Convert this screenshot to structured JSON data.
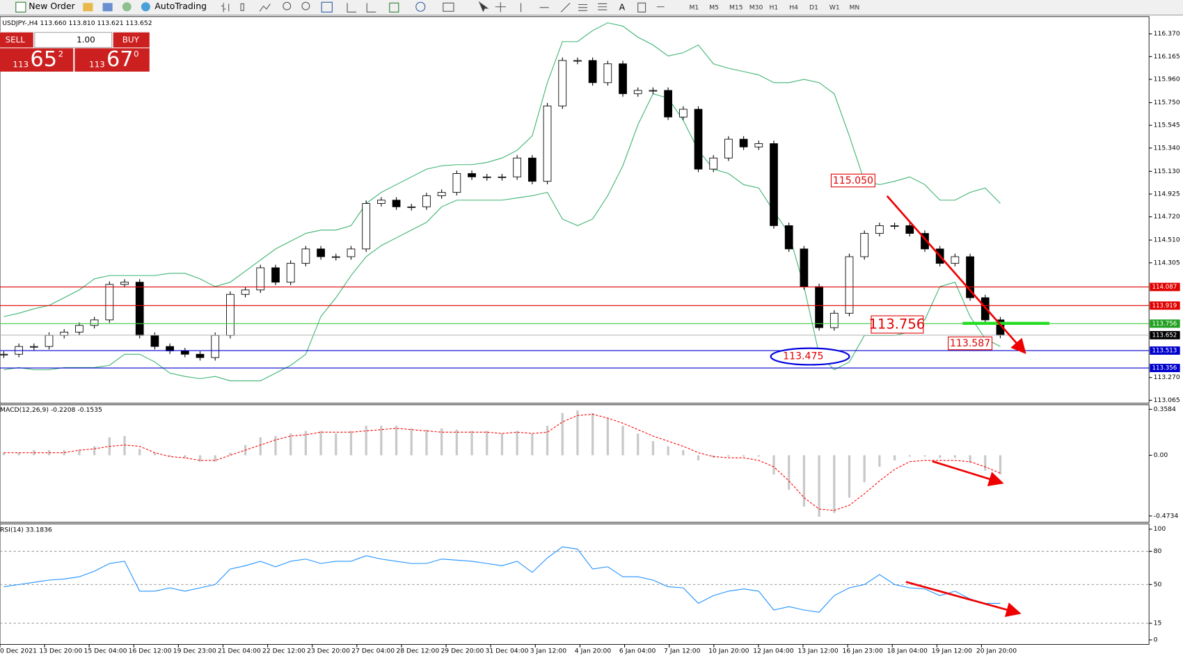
{
  "toolbar": {
    "new_order": "New Order",
    "auto_trading": "AutoTrading",
    "timeframes": [
      "M1",
      "M5",
      "M15",
      "M30",
      "H1",
      "H4",
      "D1",
      "W1",
      "MN"
    ]
  },
  "trade_panel": {
    "sell": "SELL",
    "lot": "1.00",
    "buy": "BUY",
    "sell_price": {
      "big": "113",
      "main": "65",
      "pip": "2"
    },
    "buy_price": {
      "big": "113",
      "main": "67",
      "pip": "0"
    }
  },
  "main_chart": {
    "type": "candlestick",
    "header": "USDJPY-,H4  113.660 113.810 113.621 113.652",
    "ylim": [
      113.038,
      116.526
    ],
    "yticks": [
      {
        "value": 116.37,
        "label": "116.370"
      },
      116.165,
      {
        "value": 115.96,
        "label": "115.960"
      },
      {
        "value": 115.75,
        "label": "115.750"
      },
      115.545,
      {
        "value": 115.34,
        "label": "115.340"
      },
      {
        "value": 115.13,
        "label": "115.130"
      },
      114.925,
      {
        "value": 114.72,
        "label": "114.720"
      },
      {
        "value": 114.51,
        "label": "114.510"
      },
      114.305,
      {
        "value": 113.27,
        "label": "113.270"
      },
      113.065
    ],
    "closes": [
      113.48,
      113.55,
      113.55,
      113.65,
      113.68,
      113.74,
      113.79,
      114.11,
      114.13,
      113.65,
      113.55,
      113.51,
      113.48,
      113.45,
      113.65,
      114.02,
      114.06,
      114.26,
      114.13,
      114.3,
      114.43,
      114.36,
      114.36,
      114.43,
      114.84,
      114.87,
      114.81,
      114.81,
      114.91,
      114.94,
      115.11,
      115.08,
      115.08,
      115.08,
      115.25,
      115.04,
      115.72,
      116.13,
      116.13,
      115.93,
      116.1,
      115.83,
      115.86,
      115.86,
      115.62,
      115.69,
      115.15,
      115.25,
      115.42,
      115.35,
      115.38,
      114.64,
      114.43,
      114.09,
      113.72,
      113.85,
      114.36,
      114.57,
      114.64,
      114.64,
      114.57,
      114.43,
      114.3,
      114.36,
      113.99,
      113.79,
      113.652
    ],
    "bollinger": {
      "color": "#3cb371",
      "upper": [
        113.82,
        113.85,
        113.89,
        113.92,
        113.99,
        114.06,
        114.16,
        114.19,
        114.19,
        114.19,
        114.19,
        114.21,
        114.21,
        114.16,
        114.09,
        114.13,
        114.23,
        114.33,
        114.43,
        114.5,
        114.57,
        114.6,
        114.6,
        114.64,
        114.84,
        114.94,
        115.01,
        115.08,
        115.15,
        115.18,
        115.19,
        115.19,
        115.21,
        115.25,
        115.32,
        115.45,
        115.93,
        116.3,
        116.3,
        116.4,
        116.47,
        116.44,
        116.34,
        116.27,
        116.17,
        116.2,
        116.27,
        116.1,
        116.06,
        116.03,
        116.0,
        115.93,
        115.93,
        115.96,
        115.93,
        115.83,
        115.45,
        115.04,
        115.01,
        115.04,
        115.08,
        115.01,
        114.87,
        114.87,
        114.94,
        114.98,
        114.84
      ],
      "lower": [
        113.34,
        113.36,
        113.34,
        113.34,
        113.36,
        113.36,
        113.36,
        113.38,
        113.48,
        113.48,
        113.41,
        113.31,
        113.28,
        113.26,
        113.28,
        113.24,
        113.24,
        113.24,
        113.31,
        113.38,
        113.48,
        113.82,
        113.99,
        114.19,
        114.36,
        114.46,
        114.53,
        114.6,
        114.67,
        114.81,
        114.87,
        114.87,
        114.87,
        114.87,
        114.89,
        114.91,
        114.94,
        114.7,
        114.64,
        114.7,
        114.91,
        115.18,
        115.55,
        115.83,
        115.79,
        115.59,
        115.32,
        115.15,
        115.11,
        115.01,
        114.98,
        114.77,
        114.57,
        114.09,
        113.48,
        113.34,
        113.41,
        113.65,
        113.65,
        113.65,
        113.68,
        113.79,
        114.09,
        114.13,
        113.82,
        113.62,
        113.55
      ]
    },
    "levels": [
      {
        "value": 114.087,
        "color": "#e00000",
        "label_color": "#e00000"
      },
      {
        "value": 113.919,
        "color": "#e00000",
        "label_color": "#e00000"
      },
      {
        "value": 113.756,
        "color": "#44cc44",
        "label_color": "#22a022"
      },
      {
        "value": 113.652,
        "color": "#b0b0b0",
        "label_color": "#000000"
      },
      {
        "value": 113.513,
        "color": "#0000cc",
        "label_color": "#0000cc"
      },
      {
        "value": 113.356,
        "color": "#0000cc",
        "label_color": "#0000cc"
      }
    ],
    "annotations": [
      "115.050",
      "113.756",
      "113.587",
      "113.475"
    ]
  },
  "macd_chart": {
    "type": "macd",
    "header": "MACD(12,26,9) -0.2208 -0.1535",
    "ylim": [
      -0.523,
      0.394
    ],
    "yticks": [
      0.3584,
      {
        "value": 0,
        "label": "0.00"
      },
      -0.4734
    ],
    "histogram_color": "#c8c8c8",
    "signal_color": "#ff0000",
    "histogram": [
      0.02,
      0.02,
      0.04,
      0.04,
      0.04,
      0.04,
      0.07,
      0.14,
      0.15,
      0.05,
      0.02,
      -0.01,
      -0.02,
      -0.05,
      -0.05,
      0.02,
      0.08,
      0.14,
      0.15,
      0.17,
      0.19,
      0.19,
      0.17,
      0.19,
      0.23,
      0.23,
      0.23,
      0.21,
      0.2,
      0.21,
      0.2,
      0.19,
      0.19,
      0.17,
      0.19,
      0.17,
      0.23,
      0.33,
      0.35,
      0.33,
      0.29,
      0.23,
      0.17,
      0.11,
      0.07,
      0.04,
      -0.04,
      -0.02,
      -0.01,
      -0.01,
      -0.01,
      -0.15,
      -0.27,
      -0.4,
      -0.48,
      -0.45,
      -0.33,
      -0.21,
      -0.09,
      -0.04,
      -0.01,
      -0.01,
      -0.02,
      -0.02,
      -0.06,
      -0.12,
      -0.15
    ],
    "signal": [
      0.02,
      0.02,
      0.02,
      0.02,
      0.02,
      0.04,
      0.05,
      0.07,
      0.08,
      0.07,
      0.02,
      -0.01,
      -0.02,
      -0.04,
      -0.04,
      0,
      0.04,
      0.08,
      0.12,
      0.15,
      0.16,
      0.18,
      0.18,
      0.18,
      0.19,
      0.2,
      0.21,
      0.2,
      0.19,
      0.18,
      0.18,
      0.18,
      0.18,
      0.17,
      0.18,
      0.17,
      0.18,
      0.26,
      0.31,
      0.32,
      0.29,
      0.25,
      0.2,
      0.15,
      0.11,
      0.07,
      0.02,
      -0.01,
      -0.02,
      -0.02,
      -0.04,
      -0.09,
      -0.2,
      -0.33,
      -0.42,
      -0.43,
      -0.39,
      -0.3,
      -0.2,
      -0.11,
      -0.05,
      -0.04,
      -0.04,
      -0.04,
      -0.05,
      -0.09,
      -0.14
    ]
  },
  "rsi_chart": {
    "type": "line",
    "header": "RSI(14) 33.1836",
    "ylim": [
      -4.1,
      104.8
    ],
    "yticks": [
      100,
      80,
      50,
      15,
      0
    ],
    "levels": [
      80,
      50,
      15
    ],
    "color": "#1e90ff",
    "values": [
      48,
      50,
      52,
      54,
      55,
      57,
      62,
      69,
      71,
      44,
      44,
      47,
      44,
      47,
      50,
      64,
      67,
      71,
      66,
      71,
      73,
      69,
      71,
      71,
      76,
      73,
      71,
      69,
      69,
      73,
      72,
      71,
      69,
      67,
      71,
      61,
      74,
      84,
      82,
      64,
      66,
      57,
      57,
      54,
      48,
      47,
      33,
      40,
      44,
      46,
      44,
      27,
      30,
      27,
      25,
      40,
      47,
      50,
      59,
      50,
      47,
      46,
      40,
      44,
      37,
      33,
      33
    ]
  },
  "x_labels": [
    "0 Dec 2021",
    "13 Dec 20:00",
    "15 Dec 04:00",
    "16 Dec 12:00",
    "19 Dec 23:00",
    "21 Dec 04:00",
    "22 Dec 12:00",
    "23 Dec 20:00",
    "27 Dec 04:00",
    "28 Dec 12:00",
    "29 Dec 20:00",
    "31 Dec 04:00",
    "3 Jan 12:00",
    "4 Jan 20:00",
    "6 Jan 04:00",
    "7 Jan 12:00",
    "10 Jan 20:00",
    "12 Jan 04:00",
    "13 Jan 12:00",
    "16 Jan 23:00",
    "18 Jan 04:00",
    "19 Jan 12:00",
    "20 Jan 20:00"
  ]
}
